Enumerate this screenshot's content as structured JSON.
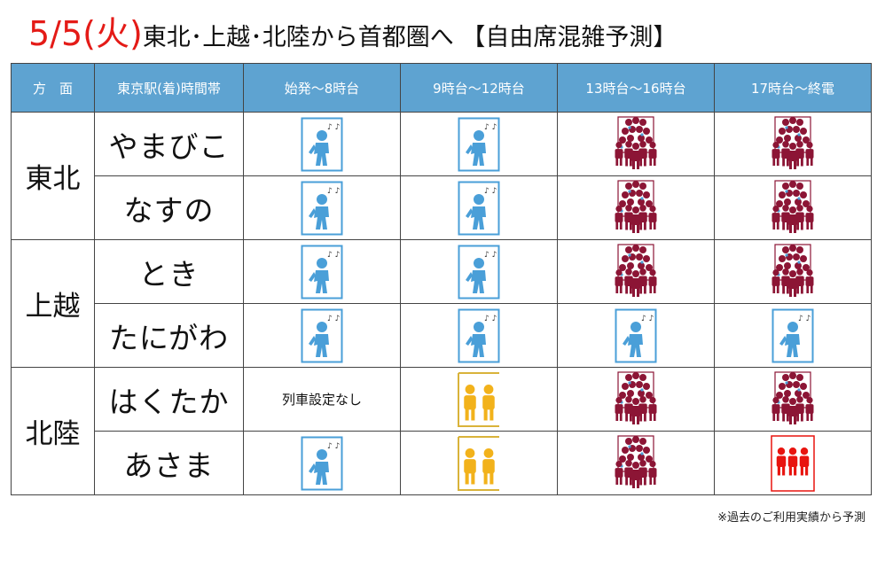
{
  "title": {
    "date": "5/5(火)",
    "text": "東北･上越･北陸から首都圏へ 【自由席混雑予測】"
  },
  "headers": [
    "方　面",
    "東京駅(着)時間帯",
    "始発～8時台",
    "9時台～12時台",
    "13時台～16時台",
    "17時台～終電"
  ],
  "groups": [
    {
      "direction": "東北",
      "trains": [
        {
          "name": "やまびこ",
          "slots": [
            "seats-available-icon",
            "seats-available-icon",
            "very-crowded-icon",
            "very-crowded-icon"
          ]
        },
        {
          "name": "なすの",
          "slots": [
            "seats-available-icon",
            "seats-available-icon",
            "very-crowded-icon",
            "very-crowded-icon"
          ]
        }
      ]
    },
    {
      "direction": "上越",
      "trains": [
        {
          "name": "とき",
          "slots": [
            "seats-available-icon",
            "seats-available-icon",
            "very-crowded-icon",
            "very-crowded-icon"
          ]
        },
        {
          "name": "たにがわ",
          "slots": [
            "seats-available-icon",
            "seats-available-icon",
            "seats-available-icon",
            "seats-available-icon"
          ]
        }
      ]
    },
    {
      "direction": "北陸",
      "trains": [
        {
          "name": "はくたか",
          "slots": [
            "no-service",
            "few-seats-icon",
            "very-crowded-icon",
            "very-crowded-icon"
          ]
        },
        {
          "name": "あさま",
          "slots": [
            "seats-available-icon",
            "few-seats-icon",
            "very-crowded-icon",
            "crowded-icon"
          ]
        }
      ]
    }
  ],
  "no_service_label": "列車設定なし",
  "icon_colors": {
    "seats-available-icon": "#4a9fd8",
    "few-seats-icon": "#f2b21b",
    "crowded-icon": "#e8140f",
    "very-crowded-icon": "#8c1535"
  },
  "footnote": "※過去のご利用実績から予測"
}
